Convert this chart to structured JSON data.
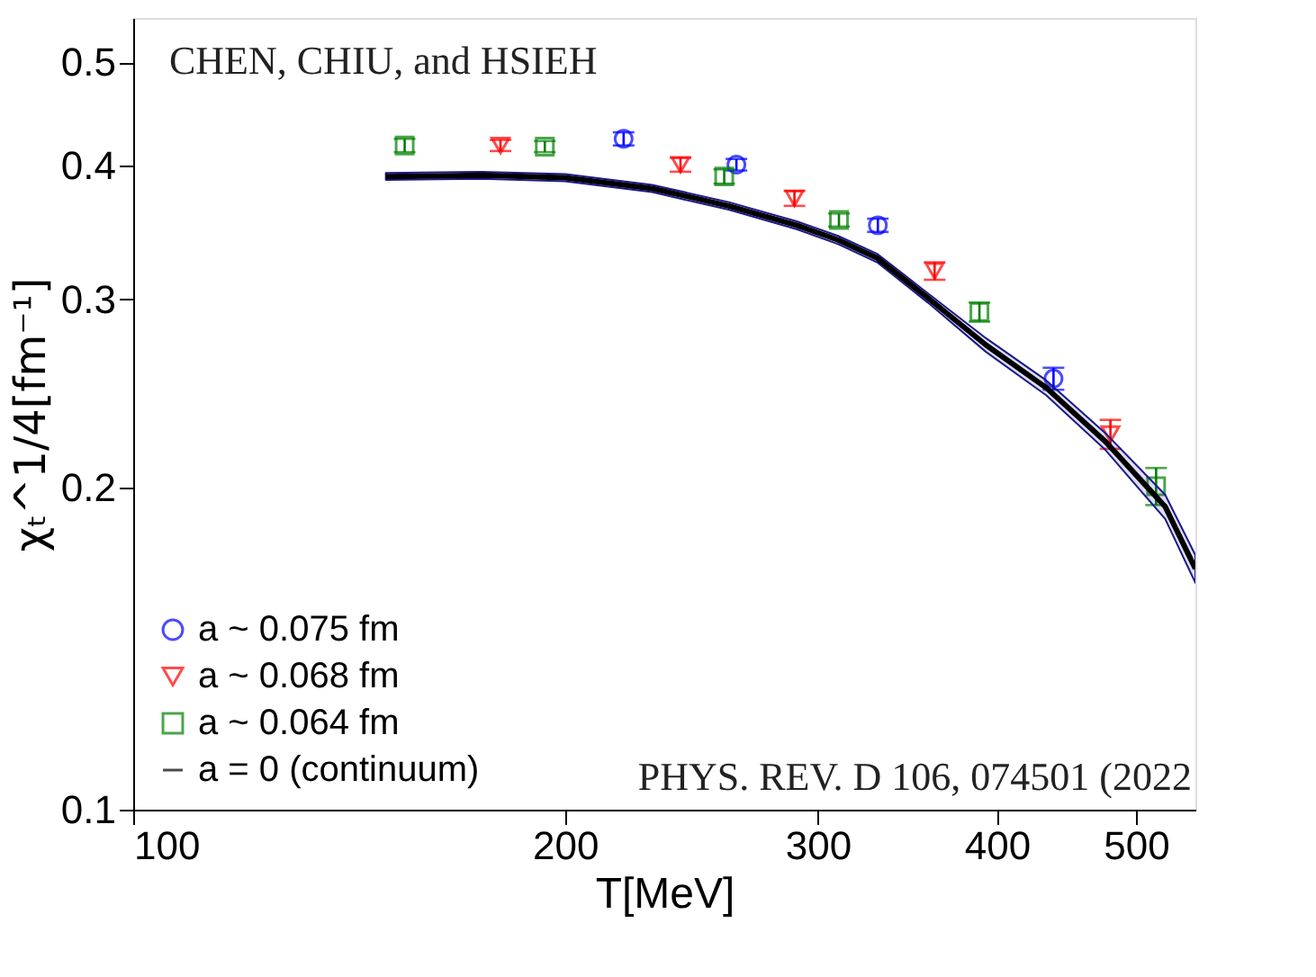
{
  "chart_data": {
    "type": "scatter",
    "xlabel": "T[MeV]",
    "ylabel": "χₜ^1/4[fm⁻¹]",
    "log": "xy",
    "xlim": [
      100,
      550
    ],
    "xticks": [
      100,
      200,
      300,
      400,
      500
    ],
    "ylim": [
      0.1,
      0.55
    ],
    "yticks": [
      0.1,
      0.2,
      0.3,
      0.4,
      0.5
    ],
    "grid": false,
    "legend": "bottom left",
    "annotations": [
      "CHEN, CHIU, and HSIEH",
      "PHYS. REV. D 106, 074501 (2022"
    ],
    "series": [
      {
        "name": "a ~ 0.075 fm",
        "color": "#0000ff",
        "marker": "circle",
        "x": [
          219.7,
          263.3,
          330.4,
          438.0
        ],
        "values": [
          0.424,
          0.401,
          0.352,
          0.253
        ],
        "errors": [
          0.006,
          0.005,
          0.005,
          0.006
        ]
      },
      {
        "name": "a ~ 0.068 fm",
        "color": "#ff0000",
        "marker": "triangle",
        "x": [
          180.3,
          240.7,
          289.0,
          361.9,
          479.9
        ],
        "values": [
          0.418,
          0.401,
          0.373,
          0.319,
          0.2245
        ],
        "errors": [
          0.005,
          0.006,
          0.006,
          0.006,
          0.007
        ]
      },
      {
        "name": "a ~ 0.064 fm",
        "color": "#008000",
        "marker": "square",
        "x": [
          154.6,
          193.6,
          258.2,
          310.4,
          388.9,
          516.4
        ],
        "values": [
          0.418,
          0.417,
          0.391,
          0.356,
          0.292,
          0.2007
        ],
        "errors": [
          0.006,
          0.005,
          0.006,
          0.005,
          0.006,
          0.008
        ]
      },
      {
        "name": "a = 0 (continuum)",
        "type": "line",
        "color": "#000000",
        "marker": "none",
        "x": [
          150,
          175,
          200,
          230,
          260,
          290,
          310,
          330,
          358,
          393,
          433,
          476,
          524,
          550
        ],
        "values": [
          0.391,
          0.392,
          0.39,
          0.381,
          0.367,
          0.352,
          0.341,
          0.328,
          0.301,
          0.272,
          0.248,
          0.221,
          0.192,
          0.168
        ],
        "lower": [
          0.388,
          0.389,
          0.387,
          0.378,
          0.364,
          0.349,
          0.338,
          0.325,
          0.298,
          0.268,
          0.244,
          0.217,
          0.187,
          0.163
        ],
        "upper": [
          0.394,
          0.395,
          0.393,
          0.384,
          0.37,
          0.355,
          0.344,
          0.331,
          0.304,
          0.276,
          0.252,
          0.225,
          0.197,
          0.173
        ]
      }
    ]
  }
}
